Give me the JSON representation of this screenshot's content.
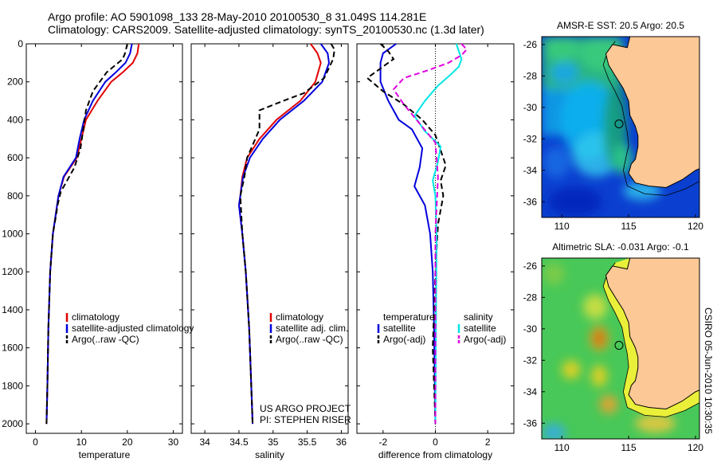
{
  "header": {
    "line1": "Argo profile: AO 5901098_133 28-May-2010 20100530_8 31.049S 114.281E",
    "line2": "Climatology: CARS2009. Satellite-adjusted climatology: synTS_20100530.nc (1.3d later)"
  },
  "stamp": "CSIRO 05-Jun-2010 10:30:35",
  "colors": {
    "climatology": "#e00000",
    "satellite": "#0000dd",
    "argo": "#000000",
    "salinity_sat": "#00e5e5",
    "salinity_argo": "#e000e0"
  },
  "chart_data": [
    {
      "type": "line",
      "xlabel": "temperature",
      "x_ticks": [
        0,
        10,
        20,
        30
      ],
      "xlim": [
        -2,
        32
      ],
      "y_ticks": [
        0,
        200,
        400,
        600,
        800,
        1000,
        1200,
        1400,
        1600,
        1800,
        2000
      ],
      "ylim": [
        2050,
        0
      ],
      "legend": [
        "climatology",
        "satellite-adjusted climatology",
        "Argo(..raw -QC)"
      ],
      "series": [
        {
          "name": "climatology",
          "x": [
            22.5,
            22.2,
            21.2,
            19,
            16.5,
            13.5,
            11,
            10,
            9,
            6.2,
            5,
            4.4,
            3.8,
            3.2,
            2.8,
            2.6,
            2.4
          ],
          "y": [
            0,
            50,
            100,
            150,
            200,
            300,
            400,
            500,
            600,
            700,
            800,
            900,
            1000,
            1200,
            1500,
            1800,
            2000
          ]
        },
        {
          "name": "satellite-adjusted climatology",
          "x": [
            21,
            20.6,
            19.6,
            17.5,
            15.2,
            12.5,
            10.6,
            9.6,
            8.8,
            6.1,
            5,
            4.4,
            3.8,
            3.2,
            2.8,
            2.6,
            2.4
          ],
          "y": [
            0,
            50,
            100,
            150,
            200,
            300,
            400,
            500,
            600,
            700,
            800,
            900,
            1000,
            1200,
            1500,
            1800,
            2000
          ]
        },
        {
          "name": "Argo(..raw -QC)",
          "x": [
            20,
            19.8,
            19.5,
            19,
            15.5,
            12.5,
            11,
            10.4,
            9.8,
            8.5,
            5.5,
            4.8,
            4.5,
            3.8,
            3.2,
            2.8,
            2.6,
            2.4
          ],
          "y": [
            0,
            20,
            50,
            80,
            150,
            250,
            350,
            450,
            550,
            650,
            780,
            850,
            900,
            1000,
            1200,
            1500,
            1800,
            2000
          ]
        }
      ]
    },
    {
      "type": "line",
      "xlabel": "salinity",
      "x_ticks": [
        34,
        34.5,
        35,
        35.5,
        36
      ],
      "xlim": [
        33.8,
        36.1
      ],
      "y_ticks": [
        0,
        200,
        400,
        600,
        800,
        1000,
        1200,
        1400,
        1600,
        1800,
        2000
      ],
      "ylim": [
        2050,
        0
      ],
      "legend": [
        "climatology",
        "satellite adj. clim.",
        "Argo(..raw -QC)"
      ],
      "annotations": [
        "US ARGO PROJECT",
        "PI: STEPHEN RISER"
      ],
      "series": [
        {
          "name": "climatology",
          "x": [
            35.55,
            35.65,
            35.7,
            35.62,
            35.4,
            35.05,
            34.8,
            34.62,
            34.55,
            34.52,
            34.5,
            34.55,
            34.6,
            34.65,
            34.68,
            34.7
          ],
          "y": [
            0,
            50,
            100,
            200,
            300,
            400,
            500,
            600,
            700,
            800,
            850,
            1000,
            1200,
            1500,
            1800,
            2000
          ]
        },
        {
          "name": "satellite adj. clim.",
          "x": [
            35.7,
            35.8,
            35.82,
            35.72,
            35.45,
            35.1,
            34.85,
            34.66,
            34.56,
            34.52,
            34.5,
            34.55,
            34.6,
            34.65,
            34.68,
            34.7
          ],
          "y": [
            0,
            50,
            100,
            200,
            300,
            400,
            500,
            600,
            700,
            800,
            850,
            1000,
            1200,
            1500,
            1800,
            2000
          ]
        },
        {
          "name": "Argo(..raw -QC)",
          "x": [
            35.85,
            35.9,
            35.88,
            35.75,
            35.45,
            35.15,
            34.8,
            34.8,
            34.62,
            34.58,
            34.52,
            34.55,
            34.6,
            34.65,
            34.68,
            34.7
          ],
          "y": [
            0,
            30,
            80,
            180,
            260,
            300,
            350,
            450,
            600,
            700,
            800,
            1000,
            1200,
            1500,
            1800,
            2000
          ]
        }
      ]
    },
    {
      "type": "line",
      "xlabel": "difference from climatology",
      "x_ticks": [
        -2,
        0,
        2
      ],
      "xlim": [
        -3,
        3
      ],
      "y_ticks": [
        0,
        200,
        400,
        600,
        800,
        1000,
        1200,
        1400,
        1600,
        1800,
        2000
      ],
      "ylim": [
        2050,
        0
      ],
      "legend": [
        "temperature",
        "satellite",
        "Argo(-adj)",
        "salinity",
        "satellite",
        "Argo(-adj)"
      ],
      "series": [
        {
          "name": "temperature satellite",
          "x": [
            -1.5,
            -2,
            -2.1,
            -2.1,
            -1.8,
            -1.4,
            -0.9,
            -0.5,
            -0.6,
            -0.8,
            -0.4,
            -0.2,
            -0.1,
            -0.05,
            -0.02,
            0
          ],
          "y": [
            0,
            50,
            100,
            200,
            300,
            400,
            450,
            550,
            650,
            750,
            850,
            1000,
            1200,
            1500,
            1800,
            2000
          ]
        },
        {
          "name": "temperature Argo(-adj)",
          "x": [
            -2.1,
            -1.8,
            -1.6,
            -2.0,
            -2.6,
            -2.0,
            -1.2,
            -0.5,
            0.0,
            0.2,
            0.4,
            0.2,
            0.3,
            0.1,
            0.0,
            -0.1,
            0
          ],
          "y": [
            0,
            40,
            80,
            120,
            180,
            250,
            320,
            400,
            480,
            560,
            640,
            720,
            800,
            950,
            1200,
            1600,
            2000
          ]
        },
        {
          "name": "salinity satellite",
          "x": [
            0.8,
            0.9,
            1.0,
            0.9,
            0.6,
            0.1,
            -0.4,
            -0.8,
            -0.4,
            0.2,
            0.1,
            -0.1,
            0.0,
            0.05,
            0.02,
            0
          ],
          "y": [
            0,
            40,
            80,
            120,
            160,
            220,
            300,
            380,
            460,
            540,
            620,
            720,
            800,
            1000,
            1500,
            2000
          ]
        },
        {
          "name": "salinity Argo(-adj)",
          "x": [
            1.0,
            1.2,
            1.0,
            0.5,
            -0.3,
            -1.2,
            -1.6,
            -1.2,
            -0.6,
            0.0,
            0.1,
            0.0,
            0.0,
            0
          ],
          "y": [
            0,
            30,
            60,
            100,
            140,
            180,
            240,
            320,
            420,
            520,
            700,
            1000,
            1500,
            2000
          ]
        }
      ]
    },
    {
      "type": "heatmap",
      "title": "AMSR-E SST: 20.5 Argo: 20.5",
      "x_ticks": [
        110,
        115,
        120
      ],
      "xlim": [
        108.5,
        120.3
      ],
      "y_ticks": [
        -26,
        -28,
        -30,
        -32,
        -34,
        -36
      ],
      "ylim": [
        -37,
        -25.5
      ],
      "marker": {
        "lon": 114.281,
        "lat": -31.049
      }
    },
    {
      "type": "heatmap",
      "title": "Altimetric SLA: -0.031 Argo: -0.1",
      "x_ticks": [
        110,
        115,
        120
      ],
      "xlim": [
        108.5,
        120.3
      ],
      "y_ticks": [
        -26,
        -28,
        -30,
        -32,
        -34,
        -36
      ],
      "ylim": [
        -37,
        -25.5
      ],
      "marker": {
        "lon": 114.281,
        "lat": -31.049
      }
    }
  ]
}
